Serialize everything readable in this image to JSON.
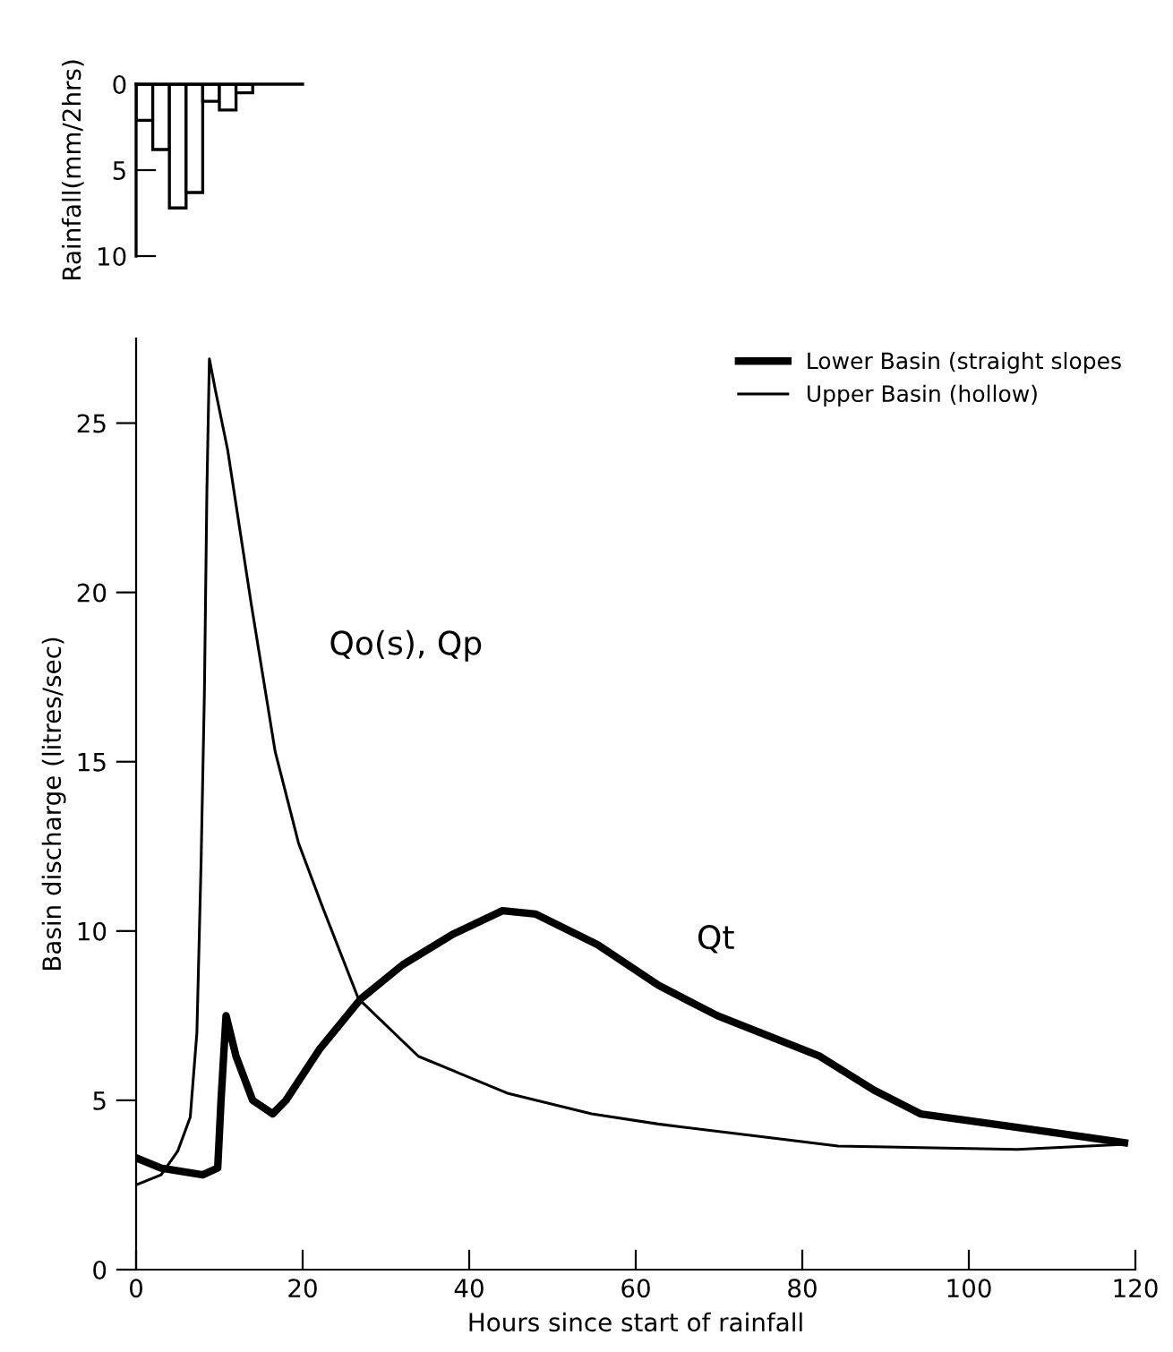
{
  "chart_data": [
    {
      "type": "bar",
      "ylabel": "Rainfall(mm/2hrs)",
      "categories": [
        null,
        null,
        null,
        null,
        null,
        null,
        null,
        null,
        null,
        null
      ],
      "values": [
        2.1,
        3.8,
        7.2,
        6.3,
        1.0,
        1.5,
        0.5,
        0,
        0,
        0
      ],
      "color": "#ffffff",
      "ylim": [
        10,
        0
      ],
      "yticks": [
        0,
        5,
        10
      ],
      "tick_labels": "y",
      "grid": false
    },
    {
      "type": "line",
      "xlabel": "Hours since start of rainfall",
      "ylabel": "Basin discharge (litres/sec)",
      "xlim": [
        0,
        120
      ],
      "ylim": [
        0,
        27.5
      ],
      "xticks": [
        0,
        20,
        40,
        60,
        80,
        100,
        120
      ],
      "yticks": [
        0,
        5,
        10,
        15,
        20,
        25
      ],
      "grid": false,
      "legend": "top right",
      "marker": "none",
      "line_style": "solid",
      "annotations": [
        "Qo(s), Qp",
        "Qt"
      ],
      "series": [
        {
          "name": "Lower Basin (straight slopes",
          "color": "#000000",
          "x": [
            0,
            3,
            8,
            9.8,
            10.2,
            10.8,
            12,
            14,
            16.4,
            18,
            22,
            27,
            32,
            38,
            44,
            48,
            55.4,
            62.7,
            69.8,
            82.1,
            88.6,
            94.2,
            105.8,
            118.7
          ],
          "values": [
            3.3,
            3.0,
            2.8,
            3.0,
            5.0,
            7.5,
            6.3,
            5.0,
            4.6,
            5.0,
            6.5,
            8.0,
            9.0,
            9.9,
            10.6,
            10.5,
            9.6,
            8.4,
            7.5,
            6.3,
            5.3,
            4.6,
            4.2,
            3.75
          ]
        },
        {
          "name": "Upper Basin (hollow)",
          "color": "#000000",
          "x": [
            0,
            3,
            5,
            6.5,
            7.3,
            7.8,
            8.2,
            8.5,
            8.8,
            9.5,
            11,
            13.8,
            16.7,
            19.5,
            22.4,
            26.7,
            33.9,
            44.7,
            54.7,
            62.7,
            84.3,
            105.8,
            118.7
          ],
          "values": [
            2.5,
            2.8,
            3.5,
            4.5,
            7.0,
            12.0,
            17.0,
            23.0,
            26.9,
            26.0,
            24.2,
            19.7,
            15.3,
            12.6,
            10.7,
            8.0,
            6.3,
            5.2,
            4.6,
            4.3,
            3.65,
            3.55,
            3.7
          ]
        }
      ]
    }
  ]
}
